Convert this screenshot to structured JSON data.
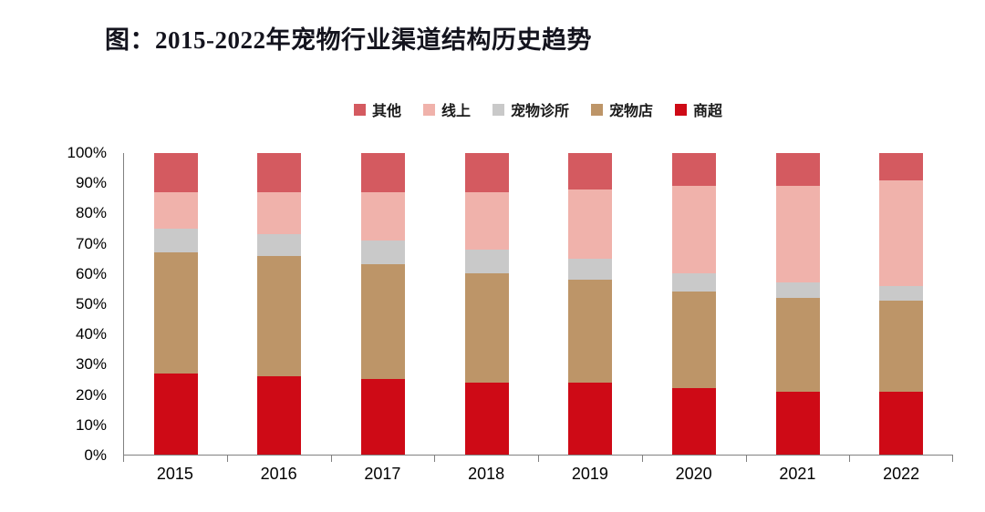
{
  "title": "图：2015-2022年宠物行业渠道结构历史趋势",
  "chart_data": {
    "type": "bar",
    "stacked": true,
    "title": "图：2015-2022年宠物行业渠道结构历史趋势",
    "categories": [
      "2015",
      "2016",
      "2017",
      "2018",
      "2019",
      "2020",
      "2021",
      "2022"
    ],
    "series": [
      {
        "name": "商超",
        "color": "#ce0a16",
        "values": [
          27,
          26,
          25,
          24,
          24,
          22,
          21,
          21
        ]
      },
      {
        "name": "宠物店",
        "color": "#bd9568",
        "values": [
          40,
          40,
          38,
          36,
          34,
          32,
          31,
          30
        ]
      },
      {
        "name": "宠物诊所",
        "color": "#c9c9c9",
        "values": [
          8,
          7,
          8,
          8,
          7,
          6,
          5,
          5
        ]
      },
      {
        "name": "线上",
        "color": "#f0b2ab",
        "values": [
          12,
          14,
          16,
          19,
          23,
          29,
          32,
          35
        ]
      },
      {
        "name": "其他",
        "color": "#d45a60",
        "values": [
          13,
          13,
          13,
          13,
          12,
          11,
          11,
          9
        ]
      }
    ],
    "legend_order": [
      "其他",
      "线上",
      "宠物诊所",
      "宠物店",
      "商超"
    ],
    "legend_position": "top",
    "xlabel": "",
    "ylabel": "",
    "ylim": [
      0,
      100
    ],
    "yticks": [
      0,
      10,
      20,
      30,
      40,
      50,
      60,
      70,
      80,
      90,
      100
    ],
    "ytick_suffix": "%",
    "grid": false
  }
}
